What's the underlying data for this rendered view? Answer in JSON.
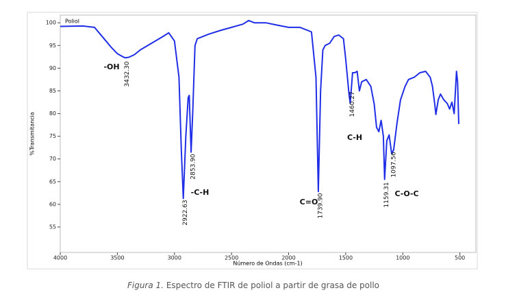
{
  "chart_data": {
    "type": "line",
    "y_label": "%Transmitancia",
    "x_label": "Número de Ondas (cm-1)",
    "x": [
      4000,
      3800,
      3700,
      3650,
      3600,
      3550,
      3500,
      3450,
      3432.3,
      3400,
      3350,
      3300,
      3200,
      3100,
      3050,
      3000,
      2960,
      2940,
      2922.63,
      2900,
      2880,
      2870,
      2853.9,
      2840,
      2820,
      2800,
      2700,
      2600,
      2500,
      2400,
      2350,
      2300,
      2200,
      2100,
      2000,
      1900,
      1800,
      1760,
      1739.9,
      1720,
      1700,
      1680,
      1640,
      1600,
      1560,
      1520,
      1500,
      1470,
      1460.27,
      1440,
      1420,
      1400,
      1380,
      1360,
      1320,
      1280,
      1250,
      1230,
      1210,
      1190,
      1170,
      1159.31,
      1140,
      1120,
      1097.56,
      1080,
      1050,
      1020,
      980,
      950,
      900,
      850,
      800,
      760,
      740,
      720,
      710,
      690,
      670,
      640,
      610,
      590,
      570,
      550,
      530,
      520,
      510
    ],
    "series": [
      {
        "name": "Poliol",
        "color": "#1f2ee6",
        "values": [
          99.2,
          99.3,
          99.0,
          97.5,
          96,
          94.5,
          93.2,
          92.5,
          92.3,
          92.4,
          93,
          94,
          95.5,
          97,
          97.8,
          96,
          88,
          72,
          61.3,
          75,
          83.5,
          84,
          71.5,
          80,
          95,
          96.5,
          97.5,
          98.3,
          99,
          99.7,
          100.5,
          100,
          100,
          99.5,
          99,
          99,
          98,
          88,
          62.8,
          85,
          94,
          95,
          95.5,
          97,
          97.3,
          96.5,
          92,
          84,
          82.3,
          89,
          89,
          89.3,
          85,
          87,
          87.5,
          86,
          82,
          77,
          76,
          78.5,
          75,
          65.5,
          74,
          75.3,
          71.2,
          72,
          78,
          83,
          86,
          87.5,
          88,
          89,
          89.3,
          88,
          86,
          82,
          79.8,
          83,
          84.3,
          83,
          82.2,
          81,
          82.5,
          80,
          89.3,
          87,
          77.7
        ]
      }
    ],
    "xlim": [
      4000,
      360
    ],
    "ylim": [
      49.4,
      101.7
    ],
    "xticks": [
      4000,
      3500,
      3000,
      2500,
      2000,
      1500,
      1000,
      500
    ],
    "yticks": [
      55,
      60,
      65,
      70,
      75,
      80,
      85,
      90,
      95,
      100
    ],
    "peaks": [
      {
        "value": 3432.3,
        "label": "3432.30"
      },
      {
        "value": 2922.63,
        "label": "2922.63"
      },
      {
        "value": 2853.9,
        "label": "2853.90"
      },
      {
        "value": 1739.9,
        "label": "1739.90"
      },
      {
        "value": 1460.27,
        "label": "1460.27"
      },
      {
        "value": 1159.31,
        "label": "1159.31"
      },
      {
        "value": 1097.56,
        "label": "1097.56"
      }
    ],
    "groups": [
      "-OH",
      "-C-H",
      "C=O",
      "C-H",
      "C-O-C"
    ],
    "caption_prefix": "Figura 1.",
    "caption": "Espectro de FTIR de poliol a partir de grasa de pollo"
  }
}
